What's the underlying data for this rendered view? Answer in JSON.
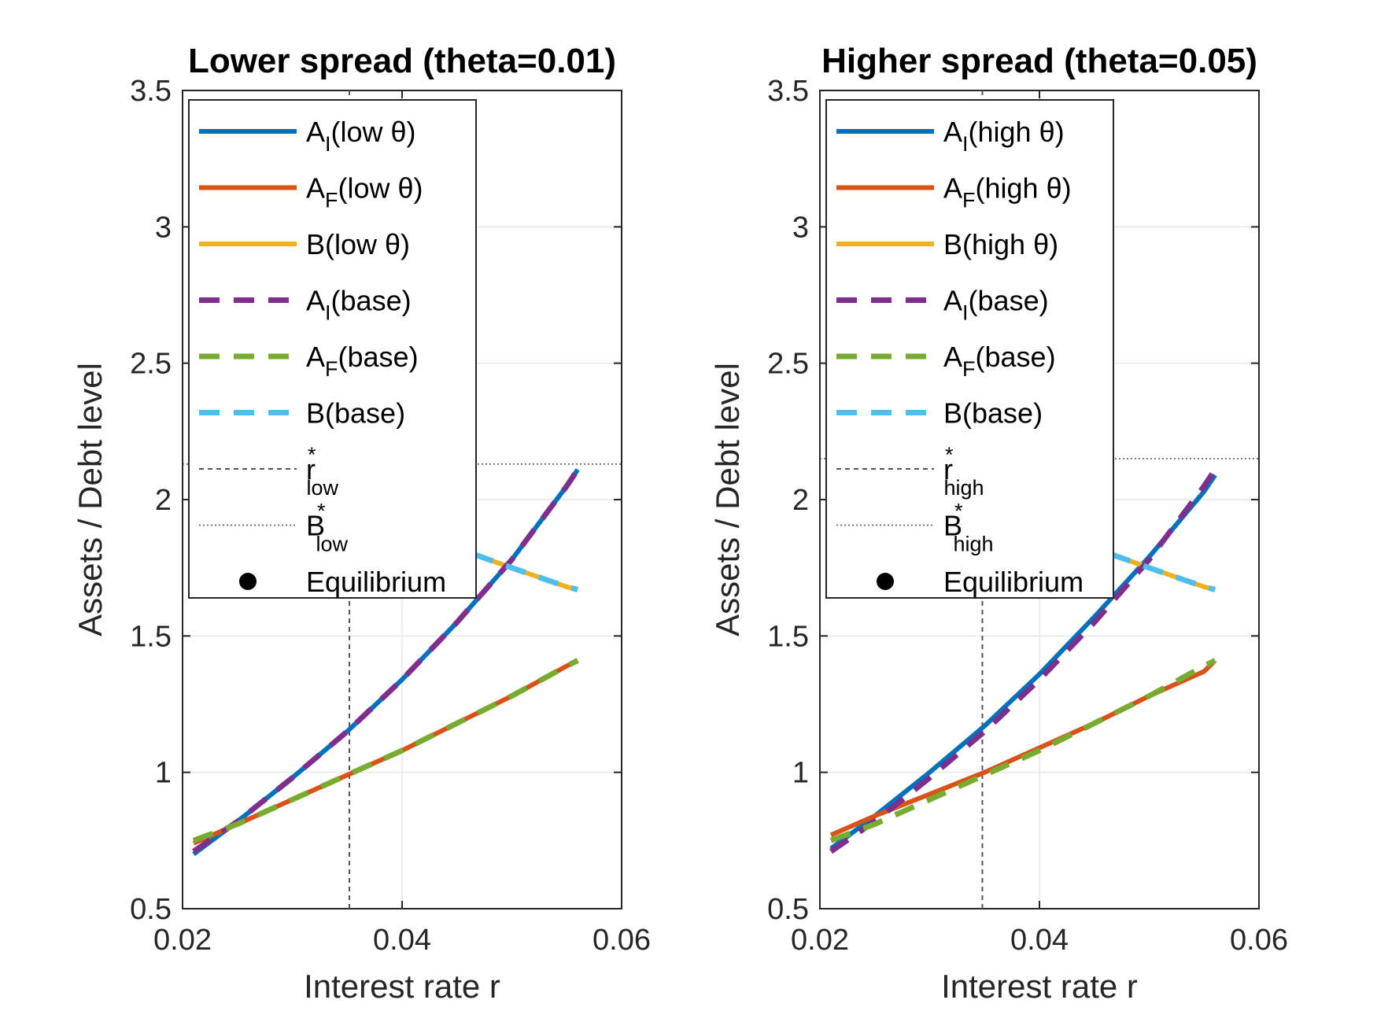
{
  "chart_data": [
    {
      "type": "line",
      "title": "Lower spread (theta=0.01)",
      "xlabel": "Interest rate r",
      "ylabel": "Assets / Debt level",
      "xlim": [
        0.02,
        0.06
      ],
      "ylim": [
        0.5,
        3.5
      ],
      "xticks": [
        "0.02",
        "0.04",
        "0.06"
      ],
      "yticks": [
        "0.5",
        "1",
        "1.5",
        "2",
        "2.5",
        "3",
        "3.5"
      ],
      "grid": true,
      "legend_position": "top-left",
      "x": [
        0.021,
        0.025,
        0.03,
        0.035,
        0.04,
        0.045,
        0.05,
        0.055,
        0.056
      ],
      "series": [
        {
          "name": "A_I(low θ)",
          "label_main": "A",
          "label_sub": "I",
          "label_rest": "(low θ)",
          "color": "#0072BD",
          "style": "solid",
          "values": [
            0.7,
            0.82,
            0.98,
            1.15,
            1.34,
            1.55,
            1.78,
            2.05,
            2.11
          ]
        },
        {
          "name": "A_F(low θ)",
          "label_main": "A",
          "label_sub": "F",
          "label_rest": "(low θ)",
          "color": "#D95319",
          "style": "solid",
          "values": [
            0.74,
            0.81,
            0.9,
            0.99,
            1.08,
            1.18,
            1.28,
            1.39,
            1.41
          ]
        },
        {
          "name": "B(low θ)",
          "label_main": "B",
          "label_sub": "",
          "label_rest": "(low θ)",
          "color": "#EDB120",
          "style": "solid",
          "x": [
            0.0465,
            0.05,
            0.055,
            0.056
          ],
          "values": [
            1.8,
            1.75,
            1.68,
            1.67
          ]
        },
        {
          "name": "A_I(base)",
          "label_main": "A",
          "label_sub": "I",
          "label_rest": "(base)",
          "color": "#7E2F8E",
          "style": "dashed",
          "values": [
            0.71,
            0.82,
            0.98,
            1.15,
            1.34,
            1.55,
            1.78,
            2.05,
            2.11
          ]
        },
        {
          "name": "A_F(base)",
          "label_main": "A",
          "label_sub": "F",
          "label_rest": "(base)",
          "color": "#77AC30",
          "style": "dashed",
          "values": [
            0.75,
            0.81,
            0.9,
            0.99,
            1.08,
            1.18,
            1.28,
            1.39,
            1.41
          ]
        },
        {
          "name": "B(base)",
          "label_main": "B",
          "label_sub": "",
          "label_rest": "(base)",
          "color": "#4DBEEE",
          "style": "dashed",
          "x": [
            0.0465,
            0.05,
            0.055,
            0.056
          ],
          "values": [
            1.8,
            1.75,
            1.68,
            1.67
          ]
        }
      ],
      "r_star": {
        "label_main": "r",
        "label_sup": "*",
        "label_sub": "low",
        "value": 0.0352
      },
      "b_star": {
        "label_main": "B",
        "label_sup": "*",
        "label_sub": "low",
        "value": 2.13
      },
      "equilibrium": {
        "label": "Equilibrium"
      }
    },
    {
      "type": "line",
      "title": "Higher spread (theta=0.05)",
      "xlabel": "Interest rate r",
      "ylabel": "Assets / Debt level",
      "xlim": [
        0.02,
        0.06
      ],
      "ylim": [
        0.5,
        3.5
      ],
      "xticks": [
        "0.02",
        "0.04",
        "0.06"
      ],
      "yticks": [
        "0.5",
        "1",
        "1.5",
        "2",
        "2.5",
        "3",
        "3.5"
      ],
      "grid": true,
      "legend_position": "top-left",
      "x": [
        0.021,
        0.025,
        0.03,
        0.035,
        0.04,
        0.045,
        0.05,
        0.055,
        0.056
      ],
      "series": [
        {
          "name": "A_I(high θ)",
          "label_main": "A",
          "label_sub": "I",
          "label_rest": "(high θ)",
          "color": "#0072BD",
          "style": "solid",
          "values": [
            0.72,
            0.84,
            1.0,
            1.17,
            1.36,
            1.57,
            1.79,
            2.03,
            2.09
          ]
        },
        {
          "name": "A_F(high θ)",
          "label_main": "A",
          "label_sub": "F",
          "label_rest": "(high θ)",
          "color": "#D95319",
          "style": "solid",
          "values": [
            0.77,
            0.84,
            0.92,
            1.0,
            1.09,
            1.18,
            1.28,
            1.37,
            1.41
          ]
        },
        {
          "name": "B(high θ)",
          "label_main": "B",
          "label_sub": "",
          "label_rest": "(high θ)",
          "color": "#EDB120",
          "style": "solid",
          "x": [
            0.0465,
            0.05,
            0.055,
            0.056
          ],
          "values": [
            1.8,
            1.75,
            1.68,
            1.67
          ]
        },
        {
          "name": "A_I(base)",
          "label_main": "A",
          "label_sub": "I",
          "label_rest": "(base)",
          "color": "#7E2F8E",
          "style": "dashed",
          "values": [
            0.71,
            0.82,
            0.98,
            1.15,
            1.34,
            1.55,
            1.78,
            2.05,
            2.11
          ]
        },
        {
          "name": "A_F(base)",
          "label_main": "A",
          "label_sub": "F",
          "label_rest": "(base)",
          "color": "#77AC30",
          "style": "dashed",
          "values": [
            0.75,
            0.81,
            0.9,
            0.99,
            1.08,
            1.18,
            1.28,
            1.39,
            1.41
          ]
        },
        {
          "name": "B(base)",
          "label_main": "B",
          "label_sub": "",
          "label_rest": "(base)",
          "color": "#4DBEEE",
          "style": "dashed",
          "x": [
            0.0465,
            0.05,
            0.055,
            0.056
          ],
          "values": [
            1.8,
            1.75,
            1.68,
            1.67
          ]
        }
      ],
      "r_star": {
        "label_main": "r",
        "label_sup": "*",
        "label_sub": "high",
        "value": 0.0348
      },
      "b_star": {
        "label_main": "B",
        "label_sup": "*",
        "label_sub": "high",
        "value": 2.15
      },
      "equilibrium": {
        "label": "Equilibrium"
      }
    }
  ]
}
